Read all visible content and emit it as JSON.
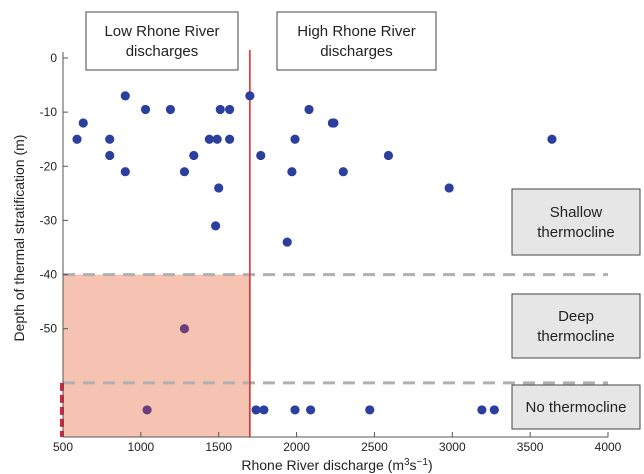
{
  "chart_data": {
    "type": "scatter",
    "xlabel": "Rhone River discharge (m",
    "xlabel_sup1": "3",
    "xlabel_mid": "s",
    "xlabel_sup2": "−1",
    "xlabel_end": ")",
    "ylabel": "Depth of thermal stratification (m)",
    "xlim": [
      500,
      4000
    ],
    "ylim": [
      -70,
      0
    ],
    "x_ticks": [
      500,
      1000,
      1500,
      2000,
      2500,
      3000,
      3500,
      4000
    ],
    "y_ticks": [
      0,
      -10,
      -20,
      -30,
      -40,
      -50
    ],
    "threshold_x": 1700,
    "dashed_lines_y": [
      -40,
      -60
    ],
    "shaded_region": {
      "x": [
        500,
        1700
      ],
      "y": [
        -70,
        -40
      ]
    },
    "annotations": {
      "low_discharge": [
        "Low Rhone River",
        "discharges"
      ],
      "high_discharge": [
        "High Rhone River",
        "discharges"
      ],
      "shallow": [
        "Shallow",
        "thermocline"
      ],
      "deep": [
        "Deep",
        "thermocline"
      ],
      "none": [
        "No thermocline"
      ]
    },
    "colors": {
      "points": "#2b3f9e",
      "points_in_shade": "#6b3f7a",
      "threshold_line": "#e03030",
      "shade": "#f6c3b3",
      "dashed": "#b0b0b0",
      "box_fill": "#e6e6e6",
      "red_marker": "#e0203a"
    },
    "points": [
      {
        "x": 590,
        "y": -15
      },
      {
        "x": 630,
        "y": -12
      },
      {
        "x": 800,
        "y": -15
      },
      {
        "x": 800,
        "y": -18
      },
      {
        "x": 900,
        "y": -7
      },
      {
        "x": 900,
        "y": -21
      },
      {
        "x": 1030,
        "y": -9.5
      },
      {
        "x": 1190,
        "y": -9.5
      },
      {
        "x": 1280,
        "y": -21
      },
      {
        "x": 1340,
        "y": -18
      },
      {
        "x": 1440,
        "y": -15
      },
      {
        "x": 1480,
        "y": -31
      },
      {
        "x": 1490,
        "y": -15
      },
      {
        "x": 1500,
        "y": -24
      },
      {
        "x": 1510,
        "y": -9.5
      },
      {
        "x": 1570,
        "y": -9.5
      },
      {
        "x": 1570,
        "y": -15
      },
      {
        "x": 1700,
        "y": -7
      },
      {
        "x": 1770,
        "y": -18
      },
      {
        "x": 1940,
        "y": -34
      },
      {
        "x": 1970,
        "y": -21
      },
      {
        "x": 1990,
        "y": -15
      },
      {
        "x": 2080,
        "y": -9.5
      },
      {
        "x": 2230,
        "y": -12
      },
      {
        "x": 2240,
        "y": -12
      },
      {
        "x": 2300,
        "y": -21
      },
      {
        "x": 2590,
        "y": -18
      },
      {
        "x": 2980,
        "y": -24
      },
      {
        "x": 3640,
        "y": -15
      },
      {
        "x": 1280,
        "y": -50
      },
      {
        "x": 1040,
        "y": -65
      },
      {
        "x": 1740,
        "y": -65
      },
      {
        "x": 1790,
        "y": -65
      },
      {
        "x": 1990,
        "y": -65
      },
      {
        "x": 2090,
        "y": -65
      },
      {
        "x": 2470,
        "y": -65
      },
      {
        "x": 3190,
        "y": -65
      },
      {
        "x": 3270,
        "y": -65
      }
    ]
  }
}
